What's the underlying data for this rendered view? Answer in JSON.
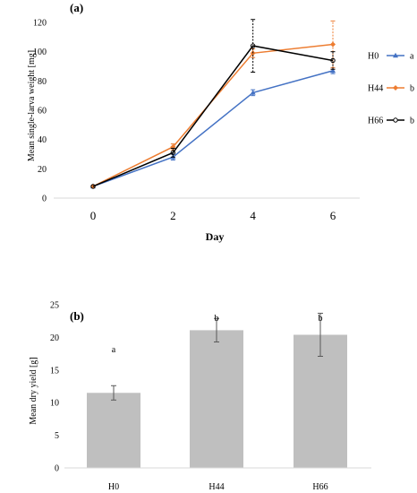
{
  "chart_data": [
    {
      "type": "line",
      "panel_label": "(a)",
      "xlabel": "Day",
      "ylabel": "Mean single-larva weight [mg]",
      "x": [
        0,
        2,
        4,
        6
      ],
      "xlim": [
        0,
        6
      ],
      "ylim": [
        0,
        120
      ],
      "yticks": [
        0,
        20,
        40,
        60,
        80,
        100,
        120
      ],
      "grid": false,
      "legend_position": "right",
      "series": [
        {
          "name": "H0",
          "letter": "a",
          "color": "#4472c4",
          "marker": "triangle",
          "values": [
            8,
            28,
            72,
            87
          ],
          "error": [
            0,
            2,
            2,
            2
          ]
        },
        {
          "name": "H44",
          "letter": "b",
          "color": "#ed7d31",
          "marker": "diamond",
          "values": [
            8,
            35,
            99,
            105
          ],
          "error": [
            0,
            2,
            3,
            16
          ]
        },
        {
          "name": "H66",
          "letter": "b",
          "color": "#000000",
          "marker": "circle",
          "values": [
            8,
            31,
            104,
            94
          ],
          "error": [
            0,
            3,
            18,
            6
          ]
        }
      ]
    },
    {
      "type": "bar",
      "panel_label": "(b)",
      "xlabel": "",
      "ylabel": "Mean dry yield [g]",
      "categories": [
        "H0",
        "H44",
        "H66"
      ],
      "values": [
        11.5,
        21.1,
        20.4
      ],
      "error": [
        1.1,
        1.8,
        3.3
      ],
      "letters": [
        "a",
        "b",
        "b"
      ],
      "ylim": [
        0,
        25
      ],
      "yticks": [
        0,
        5,
        10,
        15,
        20,
        25
      ],
      "bar_color": "#bfbfbf",
      "grid": false
    }
  ]
}
